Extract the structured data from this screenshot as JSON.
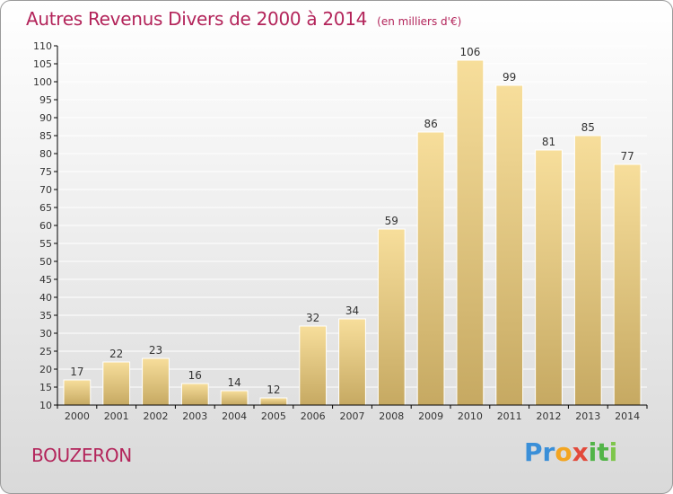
{
  "title": "Autres Revenus Divers de 2000 à 2014",
  "unit": "(en milliers d'€)",
  "commune": "BOUZERON",
  "logo_text": "Proxiti",
  "colors": {
    "title": "#b3245a",
    "bar_light": "#f6dc98",
    "bar_dark": "#c9ad68",
    "axis": "#000000",
    "grid": "#ffffff"
  },
  "chart_data": {
    "type": "bar",
    "categories": [
      "2000",
      "2001",
      "2002",
      "2003",
      "2004",
      "2005",
      "2006",
      "2007",
      "2008",
      "2009",
      "2010",
      "2011",
      "2012",
      "2013",
      "2014"
    ],
    "values": [
      17,
      22,
      23,
      16,
      14,
      12,
      32,
      34,
      59,
      86,
      106,
      99,
      81,
      85,
      77
    ],
    "ylim": [
      10,
      110
    ],
    "yticks": [
      10,
      15,
      20,
      25,
      30,
      35,
      40,
      45,
      50,
      55,
      60,
      65,
      70,
      75,
      80,
      85,
      90,
      95,
      100,
      105,
      110
    ],
    "grid": true,
    "data_labels": true
  }
}
